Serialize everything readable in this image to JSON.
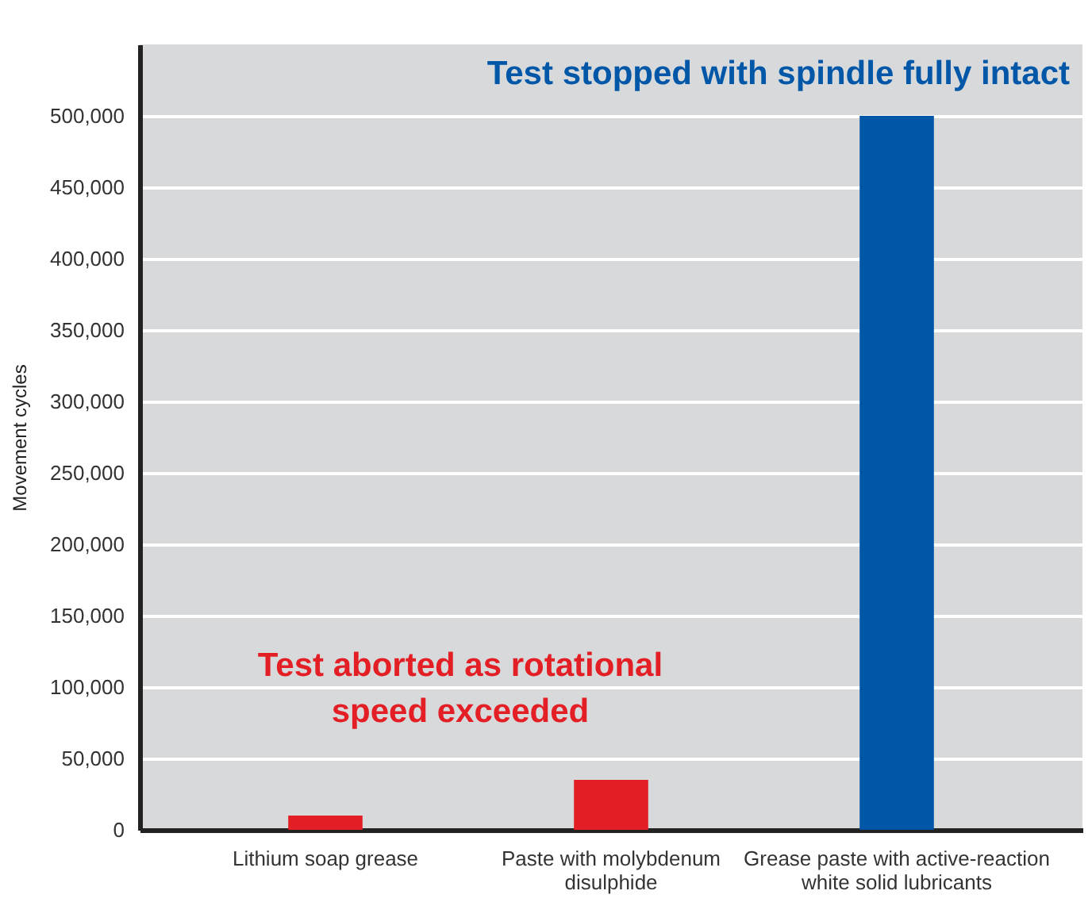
{
  "chart_data": {
    "type": "bar",
    "ylabel": "Movement cycles",
    "categories": [
      "Lithium soap grease",
      "Paste with molybdenum disulphide",
      "Grease paste with active-reaction white solid lubricants"
    ],
    "values": [
      10000,
      35000,
      500000
    ],
    "colors": [
      "#e31e24",
      "#e31e24",
      "#0057a8"
    ],
    "ylim": [
      0,
      550000
    ],
    "yticks": [
      {
        "value": 0,
        "label": "0"
      },
      {
        "value": 50000,
        "label": "50,000"
      },
      {
        "value": 100000,
        "label": "100,000"
      },
      {
        "value": 150000,
        "label": "150,000"
      },
      {
        "value": 200000,
        "label": "200,000"
      },
      {
        "value": 250000,
        "label": "250,000"
      },
      {
        "value": 300000,
        "label": "300,000"
      },
      {
        "value": 350000,
        "label": "350,000"
      },
      {
        "value": 400000,
        "label": "400,000"
      },
      {
        "value": 450000,
        "label": "450,000"
      },
      {
        "value": 500000,
        "label": "500,000"
      }
    ],
    "grid": "y",
    "annotations": [
      "Test stopped with spindle fully intact",
      "Test aborted as rotational speed exceeded"
    ]
  }
}
